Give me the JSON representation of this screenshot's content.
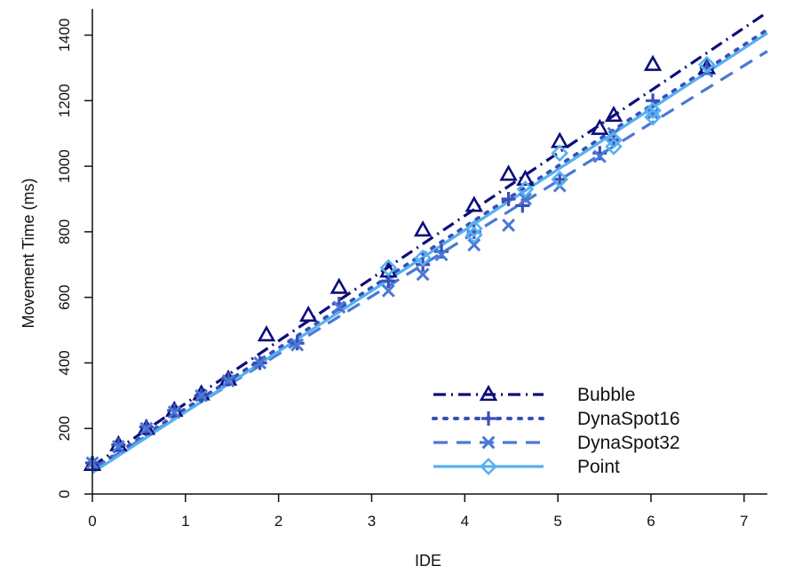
{
  "chart_data": {
    "type": "scatter",
    "title": "",
    "xlabel": "IDE",
    "ylabel": "Movement Time (ms)",
    "xlim": [
      0,
      7.25
    ],
    "ylim": [
      0,
      1480
    ],
    "xticks": [
      0,
      1,
      2,
      3,
      4,
      5,
      6,
      7
    ],
    "yticks": [
      0,
      200,
      400,
      600,
      800,
      1000,
      1200,
      1400
    ],
    "legend_position": "bottom-right",
    "grid": false,
    "series": [
      {
        "name": "Bubble",
        "color": "#0d0d7a",
        "marker": "triangle-open",
        "line_style": "dash-dot",
        "fit": {
          "intercept": 85,
          "slope": 191
        },
        "points": [
          [
            0,
            90
          ],
          [
            0.28,
            150
          ],
          [
            0.58,
            200
          ],
          [
            0.88,
            255
          ],
          [
            1.17,
            305
          ],
          [
            1.46,
            350
          ],
          [
            1.87,
            485
          ],
          [
            2.32,
            545
          ],
          [
            2.65,
            630
          ],
          [
            3.18,
            680
          ],
          [
            3.55,
            805
          ],
          [
            4.1,
            880
          ],
          [
            4.47,
            975
          ],
          [
            4.65,
            960
          ],
          [
            5.02,
            1075
          ],
          [
            5.45,
            1115
          ],
          [
            5.6,
            1155
          ],
          [
            6.02,
            1310
          ],
          [
            6.6,
            1300
          ]
        ]
      },
      {
        "name": "DynaSpot16",
        "color": "#3a4fb8",
        "marker": "plus",
        "line_style": "dotted",
        "fit": {
          "intercept": 75,
          "slope": 185
        },
        "points": [
          [
            0,
            95
          ],
          [
            0.28,
            150
          ],
          [
            0.58,
            205
          ],
          [
            0.88,
            255
          ],
          [
            1.17,
            300
          ],
          [
            1.46,
            350
          ],
          [
            1.8,
            400
          ],
          [
            2.2,
            460
          ],
          [
            2.65,
            580
          ],
          [
            3.18,
            650
          ],
          [
            3.55,
            700
          ],
          [
            3.75,
            740
          ],
          [
            4.1,
            800
          ],
          [
            4.47,
            900
          ],
          [
            4.62,
            880
          ],
          [
            5.02,
            960
          ],
          [
            5.45,
            1040
          ],
          [
            5.6,
            1080
          ],
          [
            6.02,
            1200
          ],
          [
            6.6,
            1300
          ]
        ]
      },
      {
        "name": "DynaSpot32",
        "color": "#4a78d6",
        "marker": "x",
        "line_style": "dashed",
        "fit": {
          "intercept": 75,
          "slope": 176
        },
        "points": [
          [
            0,
            95
          ],
          [
            0.28,
            145
          ],
          [
            0.58,
            200
          ],
          [
            0.88,
            250
          ],
          [
            1.17,
            300
          ],
          [
            1.46,
            345
          ],
          [
            1.8,
            400
          ],
          [
            2.2,
            455
          ],
          [
            2.65,
            570
          ],
          [
            3.18,
            620
          ],
          [
            3.55,
            670
          ],
          [
            3.75,
            730
          ],
          [
            4.1,
            760
          ],
          [
            4.47,
            820
          ],
          [
            4.65,
            900
          ],
          [
            5.02,
            940
          ],
          [
            5.45,
            1030
          ],
          [
            5.6,
            1100
          ],
          [
            6.02,
            1160
          ],
          [
            6.6,
            1290
          ]
        ]
      },
      {
        "name": "Point",
        "color": "#56b0f0",
        "marker": "diamond-open",
        "line_style": "solid",
        "fit": {
          "intercept": 65,
          "slope": 185
        },
        "points": [
          [
            3.18,
            690
          ],
          [
            3.55,
            720
          ],
          [
            4.1,
            810
          ],
          [
            4.1,
            790
          ],
          [
            4.65,
            930
          ],
          [
            5.02,
            1040
          ],
          [
            5.02,
            960
          ],
          [
            5.6,
            1060
          ],
          [
            5.6,
            1080
          ],
          [
            6.02,
            1150
          ],
          [
            6.02,
            1170
          ],
          [
            6.6,
            1310
          ]
        ]
      }
    ]
  }
}
